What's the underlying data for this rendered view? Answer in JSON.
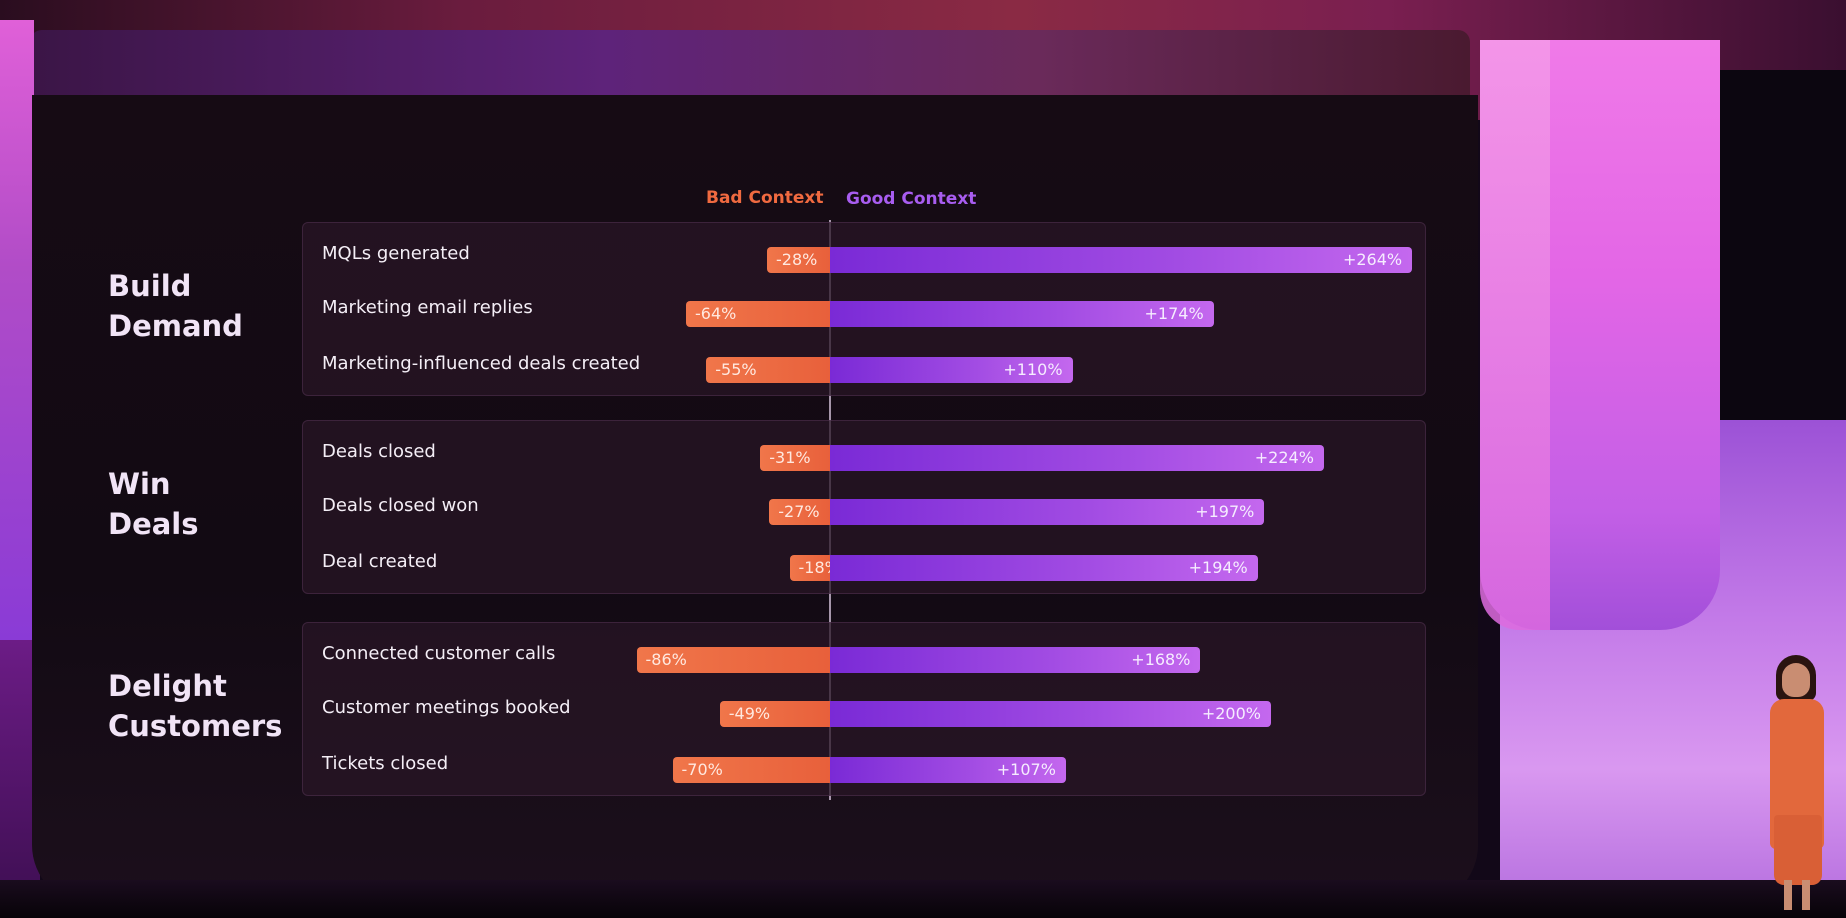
{
  "chart_data": {
    "type": "bar",
    "orientation": "horizontal",
    "diverging": true,
    "legend": [
      "Bad Context",
      "Good Context"
    ],
    "legend_placement": "top-center",
    "series": [
      {
        "name": "Bad Context",
        "color": "#ec6a42",
        "values": [
          -28,
          -64,
          -55,
          -31,
          -27,
          -18,
          -86,
          -49,
          -70
        ]
      },
      {
        "name": "Good Context",
        "color": "#a34ce4",
        "values": [
          264,
          174,
          110,
          224,
          197,
          194,
          168,
          200,
          107
        ]
      }
    ],
    "groups": [
      {
        "title": "Build\nDemand",
        "rows": [
          {
            "label": "MQLs generated",
            "bad": -28,
            "good": 264,
            "bad_label": "-28%",
            "good_label": "+264%"
          },
          {
            "label": "Marketing email replies",
            "bad": -64,
            "good": 174,
            "bad_label": "-64%",
            "good_label": "+174%"
          },
          {
            "label": "Marketing-influenced deals created",
            "bad": -55,
            "good": 110,
            "bad_label": "-55%",
            "good_label": "+110%"
          }
        ]
      },
      {
        "title": "Win\nDeals",
        "rows": [
          {
            "label": "Deals closed",
            "bad": -31,
            "good": 224,
            "bad_label": "-31%",
            "good_label": "+224%"
          },
          {
            "label": "Deals closed won",
            "bad": -27,
            "good": 197,
            "bad_label": "-27%",
            "good_label": "+197%"
          },
          {
            "label": "Deal created",
            "bad": -18,
            "good": 194,
            "bad_label": "-18%",
            "good_label": "+194%"
          }
        ]
      },
      {
        "title": "Delight\nCustomers",
        "rows": [
          {
            "label": "Connected customer calls",
            "bad": -86,
            "good": 168,
            "bad_label": "-86%",
            "good_label": "+168%"
          },
          {
            "label": "Customer meetings booked",
            "bad": -49,
            "good": 200,
            "bad_label": "-49%",
            "good_label": "+200%"
          },
          {
            "label": "Tickets closed",
            "bad": -70,
            "good": 107,
            "bad_label": "-70%",
            "good_label": "+107%"
          }
        ]
      }
    ],
    "xlabel": "",
    "ylabel": "",
    "grid": false
  }
}
